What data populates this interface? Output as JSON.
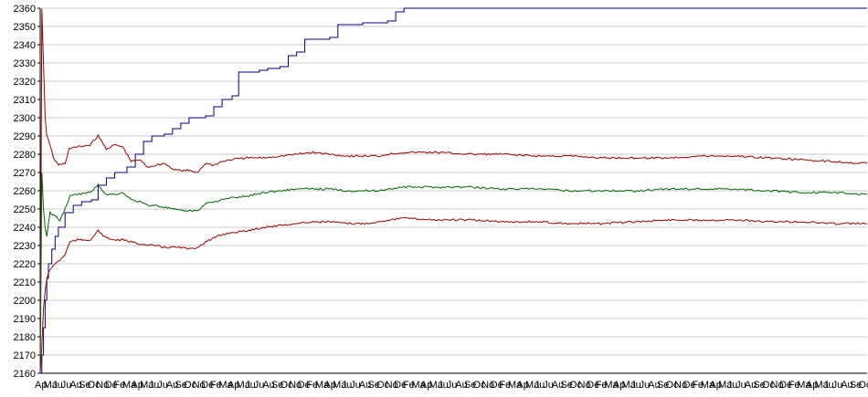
{
  "chart_data": {
    "type": "line",
    "ylim": [
      2160,
      2360
    ],
    "yticks": [
      2160,
      2170,
      2180,
      2190,
      2200,
      2210,
      2220,
      2230,
      2240,
      2250,
      2260,
      2270,
      2280,
      2290,
      2300,
      2310,
      2320,
      2330,
      2340,
      2350,
      2360
    ],
    "xlim": [
      0,
      100
    ],
    "grid": true,
    "x_tick_labels": [
      "Ap",
      "Ma",
      "Ju",
      "Ju",
      "Au",
      "Se",
      "Oc",
      "No",
      "De",
      "Fe",
      "Ma",
      "Ap",
      "Ma",
      "Ju",
      "Ju",
      "Au",
      "Se",
      "Oc",
      "No",
      "De",
      "Fe",
      "Ma",
      "Ap",
      "Ma",
      "Ju",
      "Ju",
      "Au",
      "Se",
      "Oc",
      "No",
      "De",
      "Fe",
      "Ma",
      "Ap",
      "Ma",
      "Ju",
      "Ju",
      "Au",
      "Se",
      "Oc",
      "No",
      "De",
      "Fe",
      "Ma",
      "Ap",
      "Ma",
      "Ju",
      "Ju",
      "Au",
      "Se",
      "Oc",
      "No",
      "De",
      "Fe",
      "Ma",
      "Ap",
      "Ma",
      "Ju",
      "Ju",
      "Au",
      "Se",
      "Oc",
      "No",
      "De",
      "Fe",
      "Ma",
      "Ap",
      "Ma",
      "Ju",
      "Ju",
      "Au",
      "Se",
      "Oc",
      "No",
      "De",
      "Fe",
      "Ma",
      "Ap",
      "Ma",
      "Ju",
      "Ju",
      "Au",
      "Se",
      "Oc",
      "No",
      "De",
      "Fe",
      "Ma",
      "Ap",
      "Ma",
      "Ju",
      "Ju",
      "Au",
      "Se",
      "Oc"
    ],
    "series": [
      {
        "color": "#000080",
        "points": [
          [
            0,
            2160
          ],
          [
            0.2,
            2170
          ],
          [
            0.4,
            2185
          ],
          [
            0.6,
            2200
          ],
          [
            0.8,
            2212
          ],
          [
            1.0,
            2220
          ],
          [
            1.4,
            2228
          ],
          [
            1.8,
            2235
          ],
          [
            2.2,
            2240
          ],
          [
            3.0,
            2248
          ],
          [
            4.0,
            2252
          ],
          [
            5.0,
            2254
          ],
          [
            6.2,
            2255
          ],
          [
            7.0,
            2263
          ],
          [
            8.0,
            2267
          ],
          [
            9.0,
            2270
          ],
          [
            10.5,
            2273
          ],
          [
            11.5,
            2280
          ],
          [
            12.5,
            2287
          ],
          [
            13.5,
            2290
          ],
          [
            15.0,
            2291
          ],
          [
            16.0,
            2294
          ],
          [
            17.0,
            2297
          ],
          [
            18.0,
            2300
          ],
          [
            20.0,
            2301
          ],
          [
            21.0,
            2306
          ],
          [
            22.0,
            2310
          ],
          [
            23.2,
            2312
          ],
          [
            24.0,
            2325
          ],
          [
            26.5,
            2326
          ],
          [
            27.5,
            2327
          ],
          [
            29.0,
            2328
          ],
          [
            30.0,
            2334
          ],
          [
            31.0,
            2336
          ],
          [
            32.0,
            2343
          ],
          [
            35.0,
            2344
          ],
          [
            36.0,
            2351
          ],
          [
            39.0,
            2352
          ],
          [
            42.0,
            2353
          ],
          [
            43.0,
            2358
          ],
          [
            44.0,
            2360
          ],
          [
            100,
            2360
          ]
        ]
      },
      {
        "color": "#990000",
        "points": [
          [
            0,
            2160
          ],
          [
            0.2,
            2360
          ],
          [
            0.4,
            2330
          ],
          [
            0.6,
            2300
          ],
          [
            0.8,
            2290
          ],
          [
            1.2,
            2285
          ],
          [
            1.6,
            2278
          ],
          [
            2.2,
            2274
          ],
          [
            3.0,
            2275
          ],
          [
            3.5,
            2283
          ],
          [
            4.5,
            2284
          ],
          [
            6.0,
            2285
          ],
          [
            7.0,
            2290
          ],
          [
            8.0,
            2283
          ],
          [
            9.0,
            2285
          ],
          [
            10.0,
            2284
          ],
          [
            11.0,
            2276
          ],
          [
            12.0,
            2277
          ],
          [
            13.0,
            2273
          ],
          [
            14.0,
            2274
          ],
          [
            15.0,
            2275
          ],
          [
            16.0,
            2272
          ],
          [
            17.0,
            2271
          ],
          [
            18.0,
            2271
          ],
          [
            19.0,
            2270
          ],
          [
            20.0,
            2275
          ],
          [
            21.0,
            2274
          ],
          [
            22.0,
            2276
          ],
          [
            23.0,
            2277
          ],
          [
            25.0,
            2278
          ],
          [
            27.0,
            2278
          ],
          [
            29.0,
            2279
          ],
          [
            31.0,
            2280
          ],
          [
            33.0,
            2281
          ],
          [
            35.0,
            2280
          ],
          [
            37.0,
            2279
          ],
          [
            39.0,
            2279
          ],
          [
            41.0,
            2279
          ],
          [
            42.0,
            2280
          ],
          [
            44.0,
            2281
          ],
          [
            48.0,
            2281
          ],
          [
            52.0,
            2280
          ],
          [
            56.0,
            2280
          ],
          [
            60.0,
            2279
          ],
          [
            64.0,
            2279
          ],
          [
            68.0,
            2278
          ],
          [
            72.0,
            2278
          ],
          [
            76.0,
            2278
          ],
          [
            80.0,
            2279
          ],
          [
            84.0,
            2279
          ],
          [
            88.0,
            2278
          ],
          [
            92.0,
            2277
          ],
          [
            96.0,
            2276
          ],
          [
            100,
            2275
          ]
        ]
      },
      {
        "color": "#006600",
        "points": [
          [
            0,
            2160
          ],
          [
            0.2,
            2270
          ],
          [
            0.4,
            2250
          ],
          [
            0.6,
            2240
          ],
          [
            0.8,
            2235
          ],
          [
            1.2,
            2248
          ],
          [
            1.8,
            2246
          ],
          [
            2.4,
            2244
          ],
          [
            3.0,
            2250
          ],
          [
            3.6,
            2257
          ],
          [
            4.5,
            2258
          ],
          [
            6.0,
            2259
          ],
          [
            7.0,
            2263
          ],
          [
            8.0,
            2258
          ],
          [
            9.0,
            2258
          ],
          [
            10.0,
            2259
          ],
          [
            11.0,
            2255
          ],
          [
            12.0,
            2254
          ],
          [
            13.0,
            2252
          ],
          [
            14.0,
            2252
          ],
          [
            15.0,
            2251
          ],
          [
            16.0,
            2250
          ],
          [
            17.0,
            2249
          ],
          [
            18.0,
            2249
          ],
          [
            19.0,
            2249
          ],
          [
            20.0,
            2253
          ],
          [
            21.0,
            2254
          ],
          [
            22.0,
            2255
          ],
          [
            23.0,
            2256
          ],
          [
            25.0,
            2257
          ],
          [
            27.0,
            2259
          ],
          [
            29.0,
            2260
          ],
          [
            31.0,
            2261
          ],
          [
            33.0,
            2261
          ],
          [
            35.0,
            2261
          ],
          [
            37.0,
            2260
          ],
          [
            39.0,
            2260
          ],
          [
            41.0,
            2260
          ],
          [
            42.0,
            2261
          ],
          [
            44.0,
            2262
          ],
          [
            48.0,
            2262
          ],
          [
            52.0,
            2262
          ],
          [
            56.0,
            2261
          ],
          [
            60.0,
            2261
          ],
          [
            64.0,
            2260
          ],
          [
            68.0,
            2260
          ],
          [
            72.0,
            2260
          ],
          [
            76.0,
            2261
          ],
          [
            80.0,
            2261
          ],
          [
            84.0,
            2261
          ],
          [
            88.0,
            2260
          ],
          [
            92.0,
            2259
          ],
          [
            96.0,
            2259
          ],
          [
            100,
            2258
          ]
        ]
      },
      {
        "color": "#990000",
        "points": [
          [
            0,
            2160
          ],
          [
            0.2,
            2175
          ],
          [
            0.4,
            2195
          ],
          [
            0.6,
            2205
          ],
          [
            0.8,
            2212
          ],
          [
            1.2,
            2217
          ],
          [
            1.8,
            2220
          ],
          [
            2.4,
            2222
          ],
          [
            3.0,
            2225
          ],
          [
            3.6,
            2232
          ],
          [
            4.5,
            2233
          ],
          [
            6.0,
            2233
          ],
          [
            7.0,
            2238
          ],
          [
            8.0,
            2234
          ],
          [
            9.0,
            2233
          ],
          [
            10.0,
            2233
          ],
          [
            11.0,
            2232
          ],
          [
            12.0,
            2231
          ],
          [
            13.0,
            2230
          ],
          [
            14.0,
            2230
          ],
          [
            15.0,
            2229
          ],
          [
            16.0,
            2229
          ],
          [
            17.0,
            2229
          ],
          [
            18.0,
            2228
          ],
          [
            19.0,
            2229
          ],
          [
            20.0,
            2232
          ],
          [
            21.0,
            2234
          ],
          [
            22.0,
            2236
          ],
          [
            23.0,
            2237
          ],
          [
            25.0,
            2238
          ],
          [
            27.0,
            2240
          ],
          [
            29.0,
            2241
          ],
          [
            31.0,
            2242
          ],
          [
            33.0,
            2243
          ],
          [
            35.0,
            2243
          ],
          [
            37.0,
            2242
          ],
          [
            39.0,
            2242
          ],
          [
            41.0,
            2243
          ],
          [
            42.0,
            2244
          ],
          [
            44.0,
            2245
          ],
          [
            48.0,
            2244
          ],
          [
            52.0,
            2244
          ],
          [
            56.0,
            2243
          ],
          [
            60.0,
            2243
          ],
          [
            64.0,
            2242
          ],
          [
            68.0,
            2242
          ],
          [
            72.0,
            2243
          ],
          [
            76.0,
            2244
          ],
          [
            80.0,
            2244
          ],
          [
            84.0,
            2244
          ],
          [
            88.0,
            2243
          ],
          [
            92.0,
            2243
          ],
          [
            96.0,
            2242
          ],
          [
            100,
            2242
          ]
        ]
      }
    ]
  }
}
